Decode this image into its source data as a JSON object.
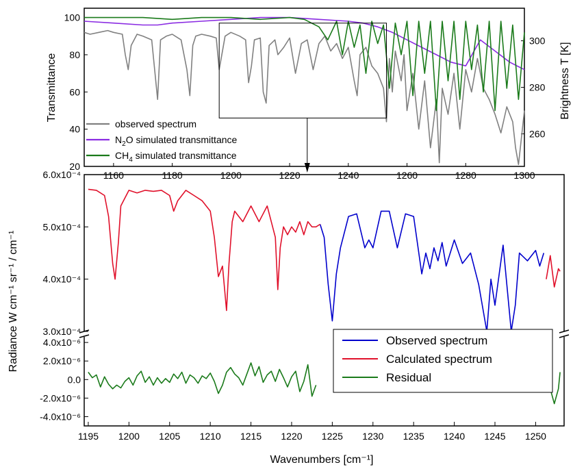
{
  "chart_data": [
    {
      "type": "line",
      "panel": "top",
      "xlabel": "",
      "ylabel": "Transmittance",
      "y2label": "Brightness T [K]",
      "xlim": [
        1150,
        1300
      ],
      "ylim": [
        20,
        105
      ],
      "y2lim": [
        246,
        314
      ],
      "x_ticks": [
        1160,
        1180,
        1200,
        1220,
        1240,
        1260,
        1280,
        1300
      ],
      "y_ticks": [
        20,
        40,
        60,
        80,
        100
      ],
      "y2_ticks": [
        260,
        280,
        300
      ],
      "legend_position": "bottom-left",
      "colors": {
        "observed": "#808080",
        "n2o": "#8a2be2",
        "ch4": "#1a7a1a"
      },
      "legend": [
        {
          "key": "observed",
          "label": "observed spectrum",
          "sub": "",
          "tail": ""
        },
        {
          "key": "n2o",
          "label": "N",
          "sub": "2",
          "tail": "O simulated transmittance"
        },
        {
          "key": "ch4",
          "label": "CH",
          "sub": "4",
          "tail": " simulated transmittance"
        }
      ],
      "inset_box_x": [
        1196,
        1253
      ],
      "inset_box_y": [
        46,
        97
      ],
      "arrow_x": 1226,
      "series": [
        {
          "key": "observed",
          "x": [
            1150,
            1152,
            1155,
            1158,
            1160,
            1163,
            1164,
            1165,
            1166,
            1168,
            1170,
            1173,
            1174,
            1175,
            1176,
            1178,
            1180,
            1183,
            1185,
            1186,
            1187,
            1188,
            1190,
            1193,
            1195,
            1196,
            1198,
            1200,
            1203,
            1205,
            1206,
            1207,
            1208,
            1210,
            1211,
            1212,
            1213,
            1215,
            1216,
            1218,
            1220,
            1222,
            1224,
            1226,
            1228,
            1230,
            1232,
            1234,
            1236,
            1238,
            1240,
            1242,
            1243,
            1244,
            1246,
            1248,
            1250,
            1252,
            1253,
            1254,
            1255,
            1256,
            1258,
            1259,
            1260,
            1262,
            1264,
            1266,
            1268,
            1270,
            1271,
            1272,
            1274,
            1276,
            1278,
            1280,
            1282,
            1284,
            1286,
            1288,
            1290,
            1292,
            1294,
            1296,
            1297,
            1298,
            1300
          ],
          "y": [
            92,
            91,
            92,
            93,
            92,
            91,
            80,
            72,
            85,
            91,
            90,
            88,
            72,
            56,
            88,
            90,
            91,
            88,
            72,
            58,
            85,
            90,
            91,
            90,
            89,
            72,
            90,
            92,
            90,
            88,
            65,
            74,
            88,
            89,
            60,
            54,
            85,
            88,
            80,
            84,
            89,
            70,
            86,
            88,
            72,
            86,
            90,
            82,
            86,
            78,
            84,
            66,
            58,
            80,
            84,
            74,
            70,
            62,
            44,
            78,
            60,
            82,
            66,
            80,
            50,
            70,
            40,
            66,
            30,
            56,
            22,
            62,
            48,
            70,
            40,
            72,
            60,
            78,
            62,
            56,
            48,
            38,
            52,
            44,
            30,
            21,
            50
          ]
        },
        {
          "key": "n2o",
          "x": [
            1150,
            1160,
            1170,
            1175,
            1180,
            1190,
            1200,
            1210,
            1220,
            1230,
            1240,
            1245,
            1250,
            1255,
            1260,
            1265,
            1270,
            1275,
            1280,
            1285,
            1290,
            1295,
            1300
          ],
          "y": [
            98,
            97,
            96,
            96,
            97,
            98,
            99,
            100,
            100,
            99,
            98,
            97,
            95,
            92,
            88,
            84,
            80,
            76,
            74,
            88,
            82,
            76,
            72
          ]
        },
        {
          "key": "ch4",
          "x": [
            1150,
            1160,
            1170,
            1180,
            1190,
            1200,
            1210,
            1220,
            1225,
            1230,
            1233,
            1236,
            1238,
            1240,
            1242,
            1244,
            1246,
            1248,
            1250,
            1252,
            1254,
            1256,
            1258,
            1260,
            1262,
            1264,
            1266,
            1268,
            1270,
            1272,
            1274,
            1276,
            1278,
            1280,
            1282,
            1284,
            1286,
            1288,
            1290,
            1292,
            1294,
            1296,
            1298,
            1300
          ],
          "y": [
            100,
            100,
            100,
            99,
            100,
            100,
            99,
            100,
            99,
            95,
            88,
            98,
            80,
            98,
            84,
            96,
            70,
            98,
            86,
            96,
            62,
            97,
            80,
            98,
            58,
            98,
            70,
            98,
            50,
            98,
            66,
            98,
            56,
            98,
            72,
            96,
            60,
            98,
            50,
            98,
            62,
            96,
            56,
            92
          ]
        }
      ]
    },
    {
      "type": "line",
      "panel": "bottom",
      "xlabel": "Wavenumbers [cm⁻¹]",
      "ylabel": "Radiance W cm⁻¹ sr⁻¹ / cm⁻¹",
      "xlim": [
        1194.5,
        1253.5
      ],
      "ylim_upper": [
        0.0003,
        0.0006
      ],
      "ylim_lower": [
        -5e-06,
        4.6e-06
      ],
      "x_ticks": [
        1195,
        1200,
        1205,
        1210,
        1215,
        1220,
        1225,
        1230,
        1235,
        1240,
        1245,
        1250
      ],
      "y_ticks_upper": [
        "3.0x10⁻⁴",
        "4.0x10⁻⁴",
        "5.0x10⁻⁴",
        "6.0x10⁻⁴"
      ],
      "y_ticks_upper_values": [
        0.0003,
        0.0004,
        0.0005,
        0.0006
      ],
      "y_ticks_lower": [
        "-4.0x10⁻⁶",
        "-2.0x10⁻⁶",
        "0.0",
        "2.0x10⁻⁶",
        "4.0x10⁻⁶"
      ],
      "y_ticks_lower_values": [
        -4e-06,
        -2e-06,
        0.0,
        2e-06,
        4e-06
      ],
      "legend_position": "bottom-right",
      "colors": {
        "observed": "#0000cc",
        "calculated": "#e0102a",
        "residual": "#1a7a1a"
      },
      "legend": [
        {
          "key": "observed",
          "label": "Observed spectrum"
        },
        {
          "key": "calculated",
          "label": "Calculated spectrum"
        },
        {
          "key": "residual",
          "label": "Residual"
        }
      ],
      "series": [
        {
          "key": "observed",
          "x": [
            1223.5,
            1224,
            1224.5,
            1225,
            1225.5,
            1226,
            1227,
            1228,
            1229,
            1229.5,
            1230,
            1231,
            1232,
            1233,
            1234,
            1235,
            1236,
            1236.5,
            1237,
            1237.5,
            1238,
            1238.5,
            1239,
            1240,
            1241,
            1242,
            1243,
            1244,
            1244.5,
            1245,
            1246,
            1247,
            1247.5,
            1248,
            1249,
            1250,
            1250.5,
            1251
          ],
          "y": [
            0.000505,
            0.00048,
            0.00039,
            0.00032,
            0.00041,
            0.00046,
            0.00052,
            0.000525,
            0.00046,
            0.000475,
            0.00046,
            0.00053,
            0.00053,
            0.00046,
            0.000525,
            0.00052,
            0.00041,
            0.00045,
            0.00042,
            0.00046,
            0.000435,
            0.00047,
            0.000425,
            0.000475,
            0.00043,
            0.00045,
            0.00039,
            0.0003,
            0.0004,
            0.00035,
            0.000465,
            0.0003,
            0.00035,
            0.00045,
            0.000435,
            0.000455,
            0.000425,
            0.00045
          ]
        },
        {
          "key": "calculated",
          "x": [
            1195,
            1196,
            1197,
            1197.5,
            1198,
            1198.3,
            1198.7,
            1199,
            1200,
            1201,
            1202,
            1203,
            1204,
            1205,
            1205.5,
            1206,
            1207,
            1208,
            1209,
            1210,
            1210.5,
            1211,
            1211.5,
            1212,
            1212.3,
            1212.7,
            1213,
            1214,
            1215,
            1216,
            1217,
            1218,
            1218.3,
            1218.6,
            1219,
            1219.5,
            1220,
            1220.5,
            1221,
            1221.5,
            1222,
            1222.5,
            1223,
            1223.5,
            1251.3,
            1251.8,
            1252.3,
            1252.8,
            1253
          ],
          "y": [
            0.000572,
            0.00057,
            0.00056,
            0.00052,
            0.00043,
            0.0004,
            0.00047,
            0.00054,
            0.00057,
            0.000565,
            0.00057,
            0.000568,
            0.00057,
            0.00056,
            0.00053,
            0.00055,
            0.00057,
            0.00056,
            0.00055,
            0.00053,
            0.00048,
            0.000405,
            0.000425,
            0.00034,
            0.00043,
            0.00051,
            0.00053,
            0.00051,
            0.00054,
            0.00051,
            0.00054,
            0.00048,
            0.00038,
            0.00046,
            0.0005,
            0.000485,
            0.0005,
            0.00049,
            0.00051,
            0.000485,
            0.00051,
            0.0005,
            0.0005,
            0.000505,
            0.0004,
            0.000445,
            0.000385,
            0.00042,
            0.000415
          ]
        },
        {
          "key": "residual",
          "x": [
            1195,
            1195.5,
            1196,
            1196.5,
            1197,
            1197.5,
            1198,
            1198.5,
            1199,
            1199.5,
            1200,
            1200.5,
            1201,
            1201.5,
            1202,
            1202.5,
            1203,
            1203.5,
            1204,
            1204.5,
            1205,
            1205.5,
            1206,
            1206.5,
            1207,
            1207.5,
            1208,
            1208.5,
            1209,
            1209.5,
            1210,
            1210.5,
            1211,
            1211.5,
            1212,
            1212.5,
            1213,
            1213.5,
            1214,
            1214.5,
            1215,
            1215.5,
            1216,
            1216.5,
            1217,
            1217.5,
            1218,
            1218.5,
            1219,
            1219.5,
            1220,
            1220.5,
            1221,
            1221.5,
            1222,
            1222.5,
            1223,
            1251.3,
            1251.8,
            1252.3,
            1252.8,
            1253
          ],
          "y": [
            8e-07,
            2e-07,
            5e-07,
            -8e-07,
            3e-07,
            -5e-07,
            -1e-06,
            -6e-07,
            -9e-07,
            -2e-07,
            2e-07,
            -6e-07,
            4e-07,
            9e-07,
            -3e-07,
            3e-07,
            -6e-07,
            2e-07,
            -4e-07,
            1e-07,
            -3e-07,
            6e-07,
            1e-07,
            8e-07,
            -4e-07,
            5e-07,
            2e-07,
            -4e-07,
            4e-07,
            1e-07,
            7e-07,
            -2e-07,
            -1.5e-06,
            -6e-07,
            8e-07,
            1.3e-06,
            6e-07,
            2e-07,
            -6e-07,
            6e-07,
            1.8e-06,
            4e-07,
            1.4e-06,
            -3e-07,
            5e-07,
            9e-07,
            -2e-07,
            1.1e-06,
            2e-07,
            -8e-07,
            3e-07,
            9e-07,
            -1.3e-06,
            -2e-07,
            1.6e-06,
            -1.8e-06,
            -6e-07,
            5e-07,
            -1e-06,
            -2.6e-06,
            -1e-06,
            8e-07
          ]
        }
      ]
    }
  ]
}
